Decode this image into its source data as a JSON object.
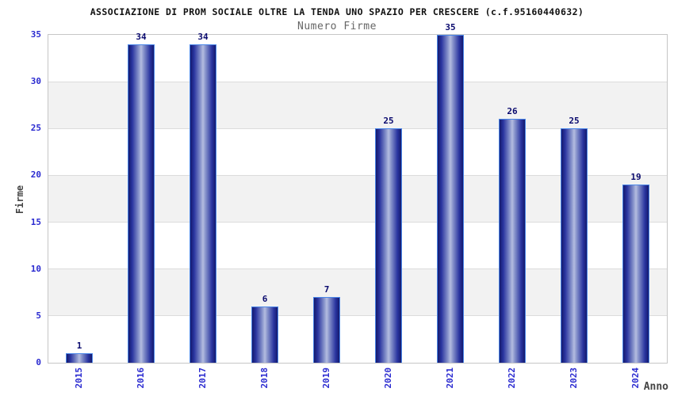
{
  "chart_data": {
    "type": "bar",
    "title": "ASSOCIAZIONE DI PROM SOCIALE OLTRE LA TENDA UNO SPAZIO PER CRESCERE (c.f.95160440632)",
    "subtitle": "Numero Firme",
    "xlabel": "Anno",
    "ylabel": "Firme",
    "categories": [
      "2015",
      "2016",
      "2017",
      "2018",
      "2019",
      "2020",
      "2021",
      "2022",
      "2023",
      "2024"
    ],
    "values": [
      1,
      34,
      34,
      6,
      7,
      25,
      35,
      26,
      25,
      19
    ],
    "ylim": [
      0,
      35
    ],
    "ytick_step": 5,
    "yticks": [
      0,
      5,
      10,
      15,
      20,
      25,
      30,
      35
    ],
    "grid": "horizontal-bands",
    "legend": "none",
    "colors": {
      "tick_label": "#2a2ad0",
      "value_label": "#0a0a6e",
      "bar_border": "#4a86e8",
      "bar_dark": "#141a6e",
      "bar_mid": "#2a35a0",
      "bar_light": "#b4bde0",
      "band_gray": "#f2f2f2",
      "band_white": "#ffffff",
      "gridline": "#dcdcdc",
      "plot_border": "#c6c6c6",
      "title_color": "#111111",
      "subtitle_color": "#666666",
      "axis_title_color": "#444444"
    }
  }
}
